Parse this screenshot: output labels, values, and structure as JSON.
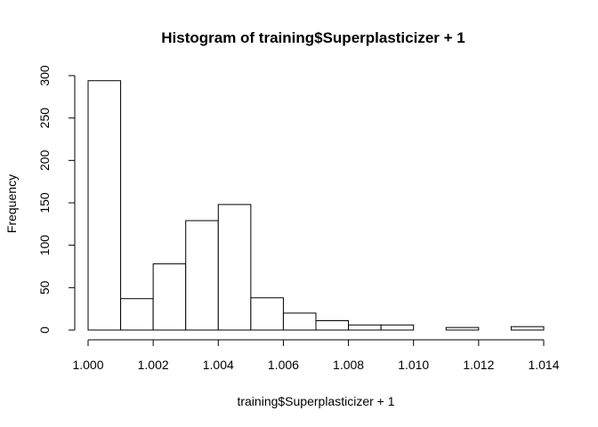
{
  "chart_data": {
    "type": "bar",
    "title": "Histogram of training$Superplasticizer + 1",
    "xlabel": "training$Superplasticizer + 1",
    "ylabel": "Frequency",
    "xlim": [
      1.0,
      1.014
    ],
    "ylim": [
      0,
      300
    ],
    "x_ticks": [
      1.0,
      1.002,
      1.004,
      1.006,
      1.008,
      1.01,
      1.012,
      1.014
    ],
    "x_tick_labels": [
      "1.000",
      "1.002",
      "1.004",
      "1.006",
      "1.008",
      "1.010",
      "1.012",
      "1.014"
    ],
    "y_ticks": [
      0,
      50,
      100,
      150,
      200,
      250,
      300
    ],
    "y_tick_labels": [
      "0",
      "50",
      "100",
      "150",
      "200",
      "250",
      "300"
    ],
    "bins": [
      {
        "start": 1.0,
        "end": 1.001,
        "count": 294
      },
      {
        "start": 1.001,
        "end": 1.002,
        "count": 37
      },
      {
        "start": 1.002,
        "end": 1.003,
        "count": 78
      },
      {
        "start": 1.003,
        "end": 1.004,
        "count": 129
      },
      {
        "start": 1.004,
        "end": 1.005,
        "count": 148
      },
      {
        "start": 1.005,
        "end": 1.006,
        "count": 38
      },
      {
        "start": 1.006,
        "end": 1.007,
        "count": 20
      },
      {
        "start": 1.007,
        "end": 1.008,
        "count": 11
      },
      {
        "start": 1.008,
        "end": 1.009,
        "count": 6
      },
      {
        "start": 1.009,
        "end": 1.01,
        "count": 6
      },
      {
        "start": 1.01,
        "end": 1.011,
        "count": 0
      },
      {
        "start": 1.011,
        "end": 1.012,
        "count": 3
      },
      {
        "start": 1.012,
        "end": 1.013,
        "count": 0
      },
      {
        "start": 1.013,
        "end": 1.014,
        "count": 4
      }
    ]
  }
}
